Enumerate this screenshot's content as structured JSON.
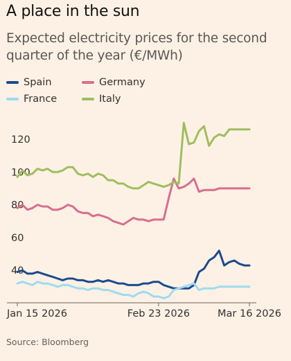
{
  "header": {
    "title": "A place in the sun",
    "subtitle": "Expected electricity prices for the second quarter of the year (€/MWh)"
  },
  "legend": [
    {
      "label": "Spain",
      "color": "#1b4a8b"
    },
    {
      "label": "Germany",
      "color": "#d96d8f"
    },
    {
      "label": "France",
      "color": "#9ddbf1"
    },
    {
      "label": "Italy",
      "color": "#9ebe5e"
    }
  ],
  "source": "Source: Bloomberg",
  "chart_data": {
    "type": "line",
    "title": "",
    "xlabel": "",
    "ylabel": "",
    "x": [
      0,
      1,
      2,
      3,
      4,
      5,
      6,
      7,
      8,
      9,
      10,
      11,
      12,
      13,
      14,
      15,
      16,
      17,
      18,
      19,
      20,
      21,
      22,
      23,
      24,
      25,
      26,
      27,
      28,
      29,
      30,
      31,
      32,
      33,
      34,
      35,
      36,
      37,
      38,
      39,
      40,
      41,
      42,
      43,
      44,
      45,
      46
    ],
    "x_tick_labels": [
      {
        "label": "Jan 15 2026",
        "index": 0
      },
      {
        "label": "Feb 23 2026",
        "index": 28
      },
      {
        "label": "Mar 16 2026",
        "index": 46
      }
    ],
    "y_ticks": [
      40,
      60,
      80,
      100,
      120
    ],
    "ylim": [
      24,
      131
    ],
    "grid": false,
    "legend_position": "top-left",
    "series": [
      {
        "name": "Spain",
        "color": "#1b4a8b",
        "values": [
          39,
          40,
          38,
          38,
          39,
          38,
          37,
          36,
          35,
          34,
          35,
          35,
          34,
          34,
          33,
          33,
          34,
          33,
          34,
          33,
          32,
          32,
          31,
          31,
          31,
          32,
          32,
          33,
          33,
          31,
          30,
          29,
          29,
          29,
          29,
          31,
          39,
          41,
          46,
          48,
          52,
          43,
          45,
          46,
          44,
          43,
          43
        ]
      },
      {
        "name": "Germany",
        "color": "#d96d8f",
        "values": [
          78,
          80,
          77,
          78,
          80,
          79,
          79,
          77,
          77,
          78,
          80,
          79,
          76,
          75,
          75,
          73,
          74,
          73,
          72,
          70,
          69,
          68,
          70,
          72,
          71,
          71,
          70,
          71,
          71,
          71,
          84,
          96,
          90,
          91,
          93,
          96,
          88,
          89,
          89,
          89,
          90,
          90,
          90,
          90,
          90,
          90,
          90
        ]
      },
      {
        "name": "France",
        "color": "#9ddbf1",
        "values": [
          32,
          33,
          32,
          31,
          33,
          32,
          32,
          31,
          30,
          31,
          31,
          30,
          29,
          29,
          28,
          29,
          29,
          28,
          28,
          27,
          26,
          25,
          25,
          24,
          26,
          27,
          26,
          24,
          24,
          23,
          24,
          28,
          29,
          30,
          31,
          32,
          28,
          29,
          29,
          29,
          30,
          30,
          30,
          30,
          30,
          30,
          30
        ]
      },
      {
        "name": "Italy",
        "color": "#9ebe5e",
        "values": [
          97,
          101,
          98,
          99,
          102,
          101,
          102,
          100,
          100,
          101,
          103,
          103,
          99,
          98,
          99,
          97,
          99,
          98,
          95,
          95,
          93,
          93,
          91,
          90,
          90,
          92,
          94,
          93,
          92,
          91,
          92,
          94,
          93,
          130,
          117,
          118,
          125,
          128,
          116,
          121,
          123,
          122,
          126,
          126,
          126,
          126,
          126
        ]
      }
    ]
  }
}
